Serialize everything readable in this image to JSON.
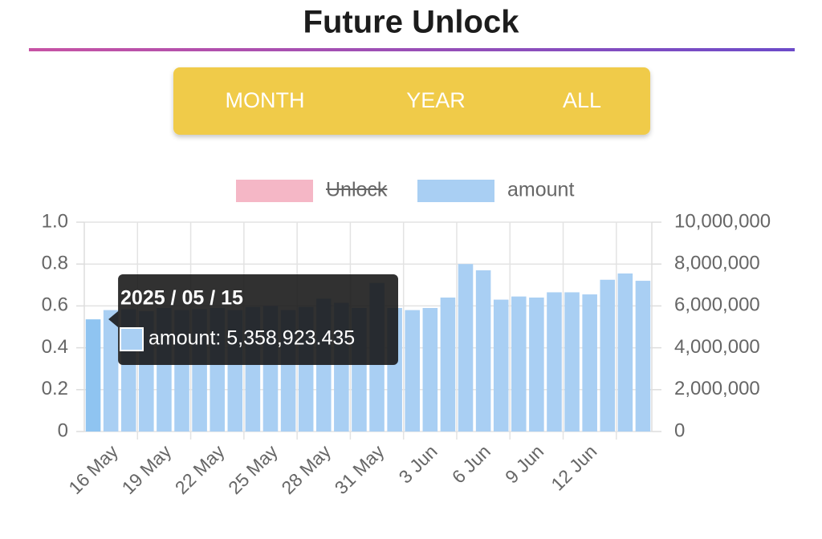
{
  "header": {
    "title": "Future Unlock"
  },
  "buttons": [
    "MONTH",
    "YEAR",
    "ALL"
  ],
  "chart_data": {
    "type": "bar",
    "categories": [
      "15 May",
      "16 May",
      null,
      null,
      "19 May",
      null,
      null,
      "22 May",
      null,
      null,
      "25 May",
      null,
      null,
      "28 May",
      null,
      null,
      "31 May",
      null,
      null,
      "3 Jun",
      null,
      null,
      "6 Jun",
      null,
      null,
      "9 Jun",
      null,
      null,
      "12 Jun",
      null,
      null,
      null
    ],
    "series": [
      {
        "name": "Unlock",
        "color": "#f5b7c6",
        "hidden": true,
        "axis": "y",
        "values": [
          null,
          null,
          null,
          null,
          null,
          null,
          null,
          null,
          null,
          null,
          null,
          null,
          null,
          null,
          null,
          null,
          null,
          null,
          null,
          null,
          null,
          null,
          null,
          null,
          null,
          null,
          null,
          null,
          null,
          null,
          null,
          null
        ]
      },
      {
        "name": "amount",
        "color": "#a9cff3",
        "axis": "y2",
        "values": [
          5358923.435,
          5800000,
          5850000,
          5750000,
          5900000,
          5800000,
          5850000,
          5900000,
          5800000,
          5950000,
          6000000,
          5800000,
          5950000,
          6350000,
          6150000,
          5900000,
          7100000,
          5900000,
          5800000,
          5900000,
          6400000,
          8000000,
          7700000,
          6300000,
          6450000,
          6400000,
          6650000,
          6650000,
          6550000,
          7250000,
          7550000,
          7200000
        ]
      }
    ],
    "ylim": [
      0,
      1
    ],
    "yticks": [
      0,
      0.2,
      0.4,
      0.6,
      0.8,
      {
        "value": 1,
        "label": "1.0"
      }
    ],
    "y2lim": [
      0,
      10000000
    ],
    "y2ticks": [
      0,
      {
        "value": 2000000,
        "label": "2,000,000"
      },
      {
        "value": 4000000,
        "label": "4,000,000"
      },
      {
        "value": 6000000,
        "label": "6,000,000"
      },
      {
        "value": 8000000,
        "label": "8,000,000"
      },
      {
        "value": 10000000,
        "label": "10,000,000"
      }
    ],
    "grid": true,
    "legend": "top",
    "tooltip": {
      "title": "2025 / 05 / 15",
      "text": "amount: 5,358,923.435",
      "index": 0
    }
  }
}
